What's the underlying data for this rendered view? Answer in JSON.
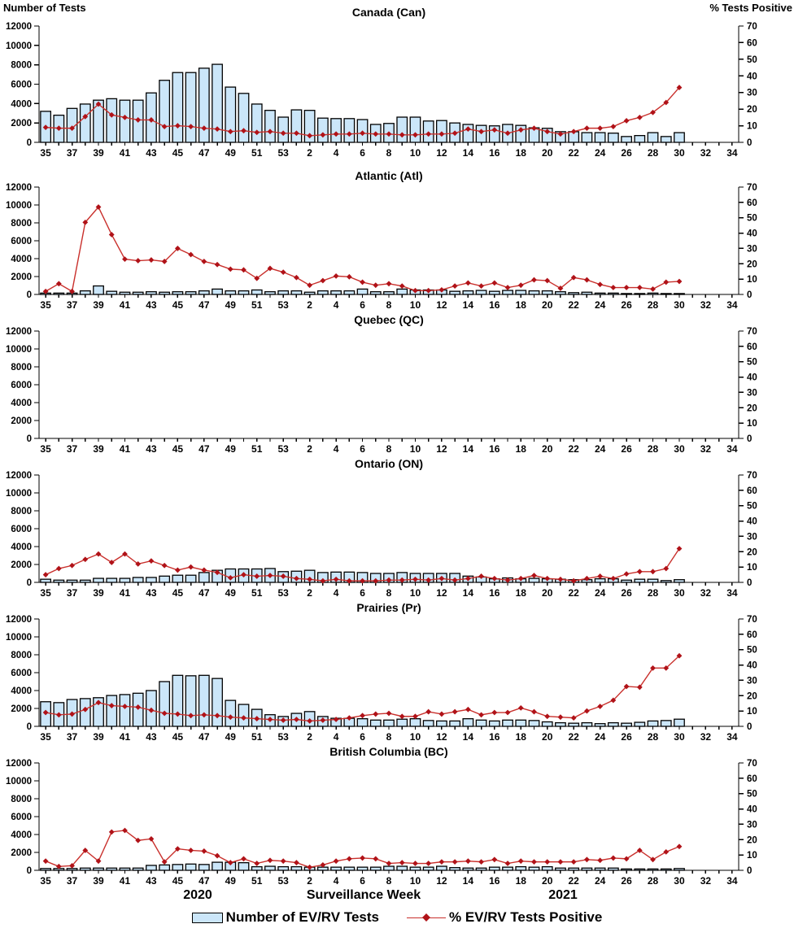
{
  "chart_data": {
    "type": "bar+line",
    "ylabel_left": "Number of Tests",
    "ylabel_right": "% Tests Positive",
    "xlabel": "Surveillance Week",
    "year_labels": [
      "2020",
      "2021"
    ],
    "ylim_left": [
      0,
      12000
    ],
    "ylim_right": [
      0,
      70
    ],
    "left_ticks": [
      0,
      2000,
      4000,
      6000,
      8000,
      10000,
      12000
    ],
    "right_ticks": [
      0,
      10,
      20,
      30,
      40,
      50,
      60,
      70
    ],
    "grid": false,
    "legend_position": "bottom",
    "colors": {
      "bar_fill": "#CBE6F9",
      "bar_stroke": "#000000",
      "line": "#C9302C",
      "marker": "#B01218",
      "axis": "#000000",
      "text": "#000000"
    },
    "legend": [
      {
        "label": "Number of EV/RV Tests",
        "type": "bar"
      },
      {
        "label": "% EV/RV Tests Positive",
        "type": "line"
      }
    ],
    "categories": [
      "35",
      "36",
      "37",
      "38",
      "39",
      "40",
      "41",
      "42",
      "43",
      "44",
      "45",
      "46",
      "47",
      "48",
      "49",
      "50",
      "51",
      "52",
      "53",
      "1",
      "2",
      "3",
      "4",
      "5",
      "6",
      "7",
      "8",
      "9",
      "10",
      "11",
      "12",
      "13",
      "14",
      "15",
      "16",
      "17",
      "18",
      "19",
      "20",
      "21",
      "22",
      "23",
      "24",
      "25",
      "26",
      "27",
      "28",
      "29",
      "30",
      "31",
      "32",
      "33",
      "34"
    ],
    "label_every_other_tick": true,
    "panels": [
      {
        "title": "Canada (Can)",
        "tests": [
          3200,
          2800,
          3500,
          3950,
          4350,
          4500,
          4350,
          4350,
          5100,
          6400,
          7200,
          7200,
          7650,
          8050,
          5700,
          5050,
          3950,
          3300,
          2600,
          3350,
          3300,
          2500,
          2450,
          2450,
          2350,
          1850,
          1950,
          2600,
          2600,
          2200,
          2250,
          2000,
          1850,
          1750,
          1700,
          1850,
          1750,
          1500,
          1450,
          1100,
          1100,
          1000,
          1000,
          950,
          600,
          700,
          1000,
          600,
          1000,
          null,
          null,
          null,
          null
        ],
        "pct_positive": [
          9,
          8.5,
          8.5,
          15.5,
          23,
          16.5,
          15,
          13.5,
          13.5,
          9.5,
          10,
          9.5,
          8.5,
          8,
          6.5,
          7,
          6,
          6.5,
          5.5,
          5.5,
          4,
          4.5,
          5,
          5,
          5.5,
          5,
          5,
          4.5,
          4.5,
          5,
          5,
          5.5,
          8,
          6.5,
          7.5,
          5.5,
          7.5,
          8.5,
          6.5,
          5,
          6.5,
          8.5,
          8.5,
          9.5,
          13,
          15,
          18,
          24,
          33,
          null,
          null,
          null,
          null
        ]
      },
      {
        "title": "Atlantic (Atl)",
        "tests": [
          150,
          150,
          150,
          400,
          950,
          350,
          250,
          250,
          300,
          250,
          300,
          300,
          400,
          600,
          400,
          400,
          500,
          300,
          400,
          400,
          250,
          400,
          400,
          400,
          600,
          300,
          300,
          600,
          500,
          500,
          500,
          350,
          400,
          450,
          350,
          450,
          450,
          400,
          400,
          300,
          200,
          250,
          150,
          150,
          100,
          100,
          150,
          100,
          100,
          null,
          null,
          null,
          null
        ],
        "pct_positive": [
          2,
          7,
          2,
          47,
          57,
          39,
          23,
          22,
          22.5,
          21.5,
          30,
          26,
          21.5,
          19.5,
          16.5,
          16,
          10.5,
          17,
          14.5,
          11,
          6,
          9,
          12,
          11.5,
          8,
          6,
          7,
          5.5,
          2.5,
          2.5,
          3,
          5.5,
          7.5,
          5.5,
          7.5,
          4.5,
          6,
          9.5,
          9,
          4,
          11,
          9.5,
          6.5,
          4.5,
          4.5,
          4.5,
          3.5,
          8,
          8.5,
          null,
          null,
          null,
          null
        ]
      },
      {
        "title": "Quebec (QC)",
        "tests": [
          null,
          null,
          null,
          null,
          null,
          null,
          null,
          null,
          null,
          null,
          null,
          null,
          null,
          null,
          null,
          null,
          null,
          null,
          null,
          null,
          null,
          null,
          null,
          null,
          null,
          null,
          null,
          null,
          null,
          null,
          null,
          null,
          null,
          null,
          null,
          null,
          null,
          null,
          null,
          null,
          null,
          null,
          null,
          null,
          null,
          null,
          null,
          null,
          null,
          null,
          null,
          null,
          null
        ],
        "pct_positive": [
          null,
          null,
          null,
          null,
          null,
          null,
          null,
          null,
          null,
          null,
          null,
          null,
          null,
          null,
          null,
          null,
          null,
          null,
          null,
          null,
          null,
          null,
          null,
          null,
          null,
          null,
          null,
          null,
          null,
          null,
          null,
          null,
          null,
          null,
          null,
          null,
          null,
          null,
          null,
          null,
          null,
          null,
          null,
          null,
          null,
          null,
          null,
          null,
          null,
          null,
          null,
          null,
          null
        ]
      },
      {
        "title": "Ontario (ON)",
        "tests": [
          350,
          250,
          250,
          250,
          450,
          450,
          450,
          550,
          550,
          700,
          800,
          800,
          1100,
          1350,
          1500,
          1500,
          1500,
          1550,
          1200,
          1250,
          1350,
          1100,
          1150,
          1150,
          1100,
          1000,
          1000,
          1100,
          1000,
          1000,
          1000,
          1000,
          700,
          600,
          400,
          500,
          400,
          450,
          400,
          350,
          300,
          300,
          400,
          400,
          250,
          350,
          350,
          200,
          300,
          null,
          null,
          null,
          null
        ],
        "pct_positive": [
          5,
          9,
          11,
          15,
          18.5,
          13,
          18.5,
          12,
          14,
          11,
          8,
          10,
          8,
          6.5,
          3,
          5,
          4,
          4.5,
          4,
          2.5,
          2,
          1,
          2,
          1,
          1,
          1,
          1.5,
          1.5,
          2,
          1.5,
          2.5,
          1.5,
          2.5,
          4,
          2.5,
          1.5,
          2.5,
          4.5,
          2.5,
          2,
          1,
          2.5,
          4,
          2.5,
          5.5,
          7,
          7,
          9,
          22,
          null,
          null,
          null,
          null
        ]
      },
      {
        "title": "Prairies (Pr)",
        "tests": [
          2750,
          2650,
          3000,
          3100,
          3200,
          3450,
          3550,
          3700,
          4000,
          5000,
          5700,
          5650,
          5700,
          5350,
          2900,
          2450,
          1900,
          1300,
          1100,
          1450,
          1650,
          1100,
          900,
          900,
          850,
          700,
          700,
          800,
          850,
          650,
          600,
          600,
          850,
          700,
          600,
          700,
          700,
          650,
          500,
          400,
          350,
          400,
          300,
          400,
          350,
          450,
          600,
          650,
          800,
          null,
          null,
          null,
          null
        ],
        "pct_positive": [
          9,
          7.5,
          8,
          11,
          15.5,
          13.5,
          13,
          12.5,
          10.5,
          8.5,
          8,
          7,
          7.5,
          7,
          6,
          5.5,
          5,
          4.5,
          4,
          4.5,
          3.5,
          4,
          4.5,
          5.5,
          7,
          8,
          8.5,
          6.5,
          6.5,
          9.5,
          8,
          9.5,
          11,
          7.5,
          9,
          9,
          12,
          9.5,
          6.5,
          6,
          5.5,
          10,
          13,
          17,
          26,
          25.5,
          38,
          38,
          46,
          null,
          null,
          null,
          null
        ]
      },
      {
        "title": "British Columbia (BC)",
        "tests": [
          200,
          200,
          200,
          250,
          250,
          250,
          250,
          250,
          550,
          600,
          650,
          700,
          650,
          900,
          900,
          850,
          400,
          450,
          400,
          400,
          350,
          350,
          350,
          350,
          350,
          350,
          450,
          450,
          350,
          350,
          450,
          300,
          250,
          250,
          350,
          350,
          400,
          350,
          400,
          250,
          250,
          250,
          250,
          250,
          150,
          150,
          150,
          150,
          200,
          null,
          null,
          null,
          null
        ],
        "pct_positive": [
          6,
          2.5,
          3,
          13,
          6,
          25,
          26,
          19.5,
          20.5,
          5.5,
          14,
          13,
          12.5,
          9.5,
          5,
          7.5,
          4.5,
          6.5,
          6,
          5,
          2,
          3.5,
          6,
          7.5,
          8,
          7.5,
          4.5,
          5,
          4.5,
          4.5,
          5.5,
          5.5,
          6,
          5.5,
          7,
          4.5,
          6,
          5.5,
          5.5,
          5.5,
          5.5,
          7,
          6.5,
          8,
          7.5,
          13,
          7,
          12,
          15.5,
          null,
          null,
          null,
          null
        ]
      }
    ]
  }
}
